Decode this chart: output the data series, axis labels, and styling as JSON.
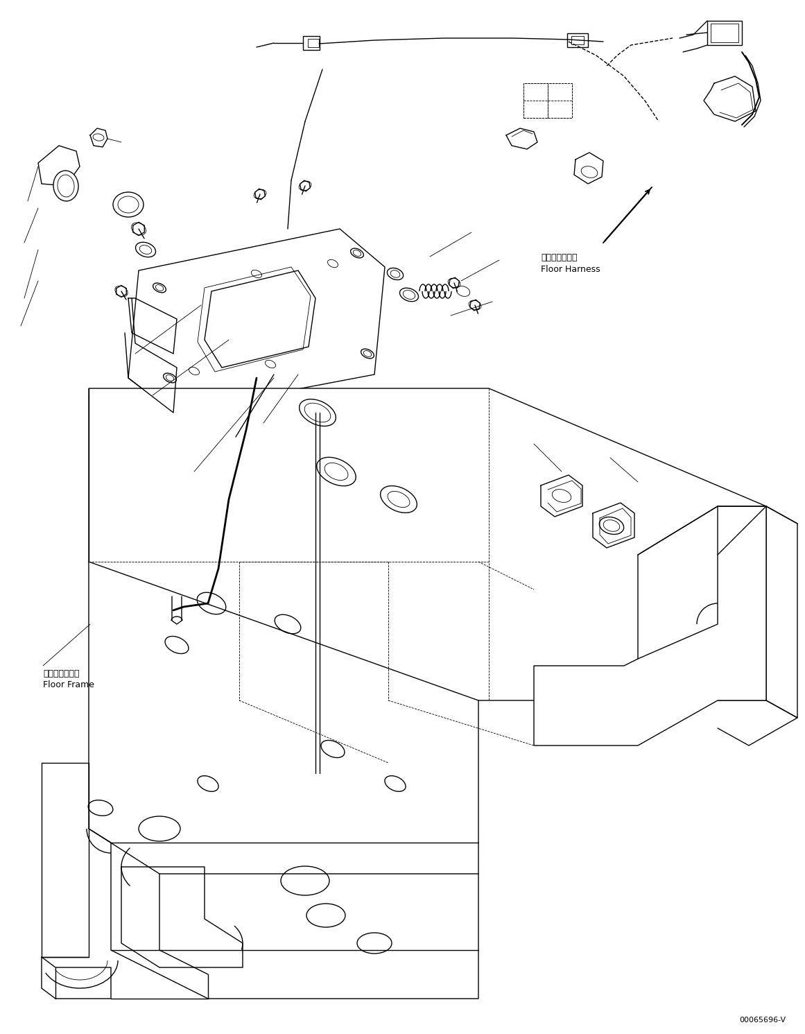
{
  "bg_color": "#ffffff",
  "line_color": "#000000",
  "lw": 1.0,
  "lw_thin": 0.6,
  "lw_thick": 2.0,
  "lw_med": 1.4,
  "figsize": [
    11.61,
    14.91
  ],
  "dpi": 100,
  "label_floor_harness_jp": "フロアハーネス",
  "label_floor_harness_en": "Floor Harness",
  "label_floor_frame_jp": "フロアフレーム",
  "label_floor_frame_en": "Floor Frame",
  "label_code": "00065696-V",
  "fs": 9,
  "fs_code": 8
}
